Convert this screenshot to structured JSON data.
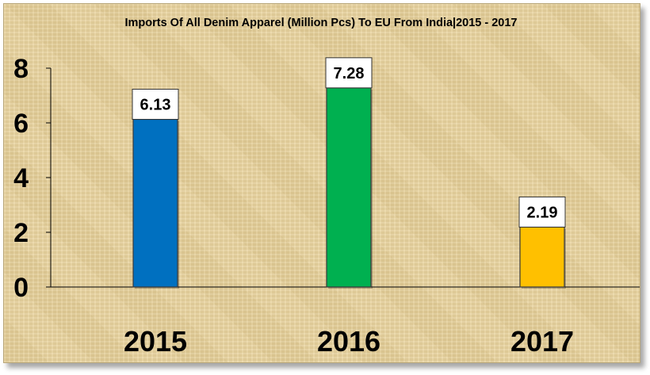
{
  "chart_data": {
    "type": "bar",
    "title": "Imports Of All Denim Apparel (Million Pcs) To EU From India|2015 - 2017",
    "categories": [
      "2015",
      "2016",
      "2017"
    ],
    "values": [
      6.13,
      7.28,
      2.19
    ],
    "value_labels": [
      "6.13",
      "7.28",
      "2.19"
    ],
    "bar_colors": [
      "#0070c0",
      "#00b050",
      "#ffc000"
    ],
    "ylim": [
      0,
      8
    ],
    "yticks": [
      "0",
      "2",
      "4",
      "6",
      "8"
    ],
    "xlabel": "",
    "ylabel": "",
    "grid": false,
    "legend": "none"
  }
}
